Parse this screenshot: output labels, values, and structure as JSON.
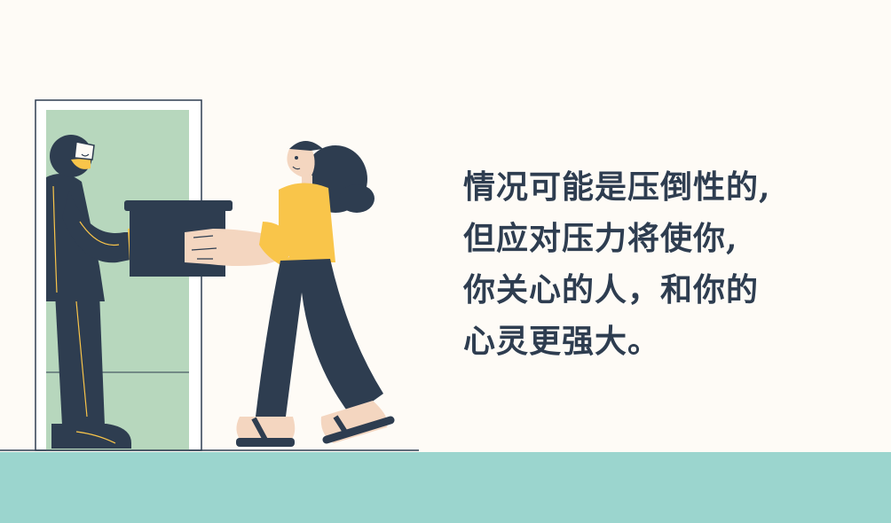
{
  "quote": {
    "lines": [
      "情况可能是压倒性的,",
      "但应对压力将使你,",
      "你关心的人，和你的",
      "心灵更强大。"
    ]
  },
  "colors": {
    "background": "#fefbf6",
    "floor": "#9bd5ce",
    "door_panel": "#b7d7bd",
    "navy": "#2e3d50",
    "yellow": "#f9c54a",
    "skin": "#f4d6c0",
    "text": "#2e3d50"
  },
  "illustration": {
    "scene": "delivery",
    "figures": [
      "delivery-person",
      "woman-receiving-box"
    ],
    "objects": [
      "door",
      "box",
      "floor"
    ]
  }
}
